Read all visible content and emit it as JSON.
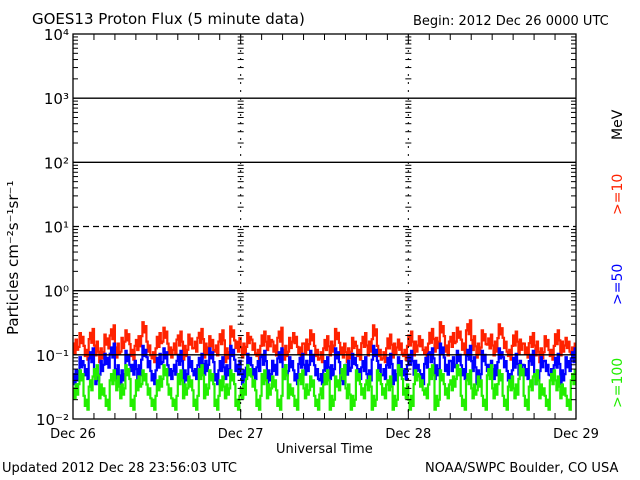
{
  "chart_data": {
    "type": "line",
    "title": "GOES13 Proton Flux (5 minute data)",
    "begin": "Begin: 2012 Dec 26 0000 UTC",
    "xlabel": "Universal Time",
    "ylabel": "Particles cm⁻²s⁻¹sr⁻¹",
    "yscale": "log",
    "ylim": [
      0.01,
      10000
    ],
    "ytick_labels": [
      "10⁻²",
      "10⁻¹",
      "10⁰",
      "10¹",
      "10²",
      "10³",
      "10⁴"
    ],
    "xlim_days": [
      0,
      3
    ],
    "xtick_labels": [
      "Dec 26",
      "Dec 27",
      "Dec 28",
      "Dec 29"
    ],
    "threshold": 10,
    "legend_unit": "MeV",
    "series": [
      {
        "name": ">=10",
        "color": "#ff2200",
        "values": [
          0.15,
          0.19,
          0.12,
          0.22,
          0.14,
          0.11,
          0.18,
          0.25,
          0.13,
          0.16,
          0.21,
          0.12,
          0.17,
          0.28,
          0.14,
          0.11,
          0.19,
          0.23,
          0.13,
          0.15,
          0.2,
          0.12,
          0.18,
          0.16,
          0.22,
          0.13,
          0.17,
          0.14,
          0.21,
          0.11,
          0.24,
          0.16,
          0.13,
          0.19,
          0.15,
          0.12,
          0.2,
          0.17,
          0.14,
          0.23,
          0.12,
          0.16,
          0.19,
          0.13,
          0.15,
          0.21,
          0.12,
          0.11,
          0.17,
          0.14,
          0.22,
          0.13,
          0.11,
          0.16,
          0.12,
          0.19,
          0.14,
          0.25,
          0.12,
          0.11,
          0.18,
          0.13,
          0.15,
          0.12,
          0.2,
          0.14,
          0.17,
          0.13,
          0.22,
          0.16,
          0.28,
          0.14,
          0.19,
          0.23,
          0.15,
          0.3,
          0.17,
          0.13,
          0.21,
          0.18,
          0.14,
          0.26,
          0.16,
          0.12,
          0.2,
          0.15,
          0.13,
          0.19,
          0.14,
          0.11,
          0.17,
          0.12,
          0.21,
          0.14,
          0.16,
          0.13
        ]
      },
      {
        "name": ">=50",
        "color": "#0000ff",
        "values": [
          0.05,
          0.08,
          0.06,
          0.11,
          0.05,
          0.07,
          0.09,
          0.13,
          0.06,
          0.05,
          0.1,
          0.07,
          0.06,
          0.12,
          0.08,
          0.05,
          0.09,
          0.11,
          0.06,
          0.07,
          0.1,
          0.05,
          0.08,
          0.06,
          0.09,
          0.07,
          0.11,
          0.05,
          0.08,
          0.06,
          0.12,
          0.07,
          0.05,
          0.09,
          0.06,
          0.08,
          0.1,
          0.05,
          0.07,
          0.11,
          0.06,
          0.08,
          0.05,
          0.09,
          0.07,
          0.1,
          0.06,
          0.05,
          0.08,
          0.06,
          0.11,
          0.05,
          0.07,
          0.09,
          0.06,
          0.08,
          0.05,
          0.12,
          0.07,
          0.06,
          0.09,
          0.05,
          0.08,
          0.06,
          0.1,
          0.07,
          0.05,
          0.09,
          0.11,
          0.06,
          0.13,
          0.07,
          0.08,
          0.1,
          0.06,
          0.12,
          0.08,
          0.05,
          0.1,
          0.07,
          0.06,
          0.11,
          0.08,
          0.05,
          0.09,
          0.07,
          0.06,
          0.1,
          0.05,
          0.08,
          0.07,
          0.06,
          0.09,
          0.05,
          0.08,
          0.11
        ]
      },
      {
        "name": ">=100",
        "color": "#22ee00",
        "values": [
          0.03,
          0.05,
          0.02,
          0.04,
          0.06,
          0.03,
          0.02,
          0.05,
          0.04,
          0.03,
          0.06,
          0.02,
          0.04,
          0.05,
          0.03,
          0.02,
          0.04,
          0.06,
          0.03,
          0.02,
          0.05,
          0.03,
          0.04,
          0.02,
          0.06,
          0.03,
          0.05,
          0.02,
          0.04,
          0.03,
          0.05,
          0.02,
          0.03,
          0.06,
          0.04,
          0.02,
          0.05,
          0.03,
          0.04,
          0.02,
          0.06,
          0.03,
          0.02,
          0.05,
          0.03,
          0.04,
          0.02,
          0.03,
          0.05,
          0.02,
          0.04,
          0.06,
          0.03,
          0.02,
          0.05,
          0.03,
          0.04,
          0.02,
          0.05,
          0.03,
          0.04,
          0.02,
          0.06,
          0.03,
          0.02,
          0.05,
          0.04,
          0.03,
          0.06,
          0.02,
          0.05,
          0.03,
          0.04,
          0.06,
          0.02,
          0.05,
          0.03,
          0.04,
          0.02,
          0.06,
          0.03,
          0.05,
          0.02,
          0.04,
          0.03,
          0.06,
          0.02,
          0.04,
          0.05,
          0.03,
          0.02,
          0.05,
          0.04,
          0.03,
          0.02,
          0.05
        ]
      }
    ]
  },
  "footer": {
    "updated": "Updated 2012 Dec 28 23:56:03 UTC",
    "source": "NOAA/SWPC Boulder, CO USA"
  }
}
